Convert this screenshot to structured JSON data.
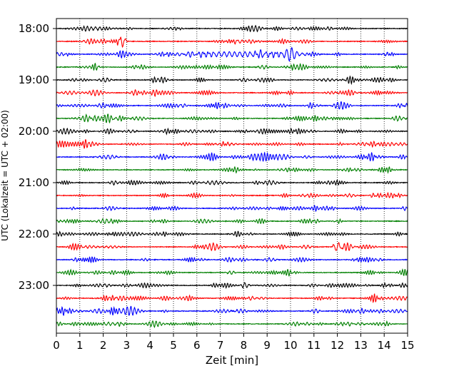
{
  "chart_data": {
    "type": "line",
    "title": "",
    "xlabel": "Zeit  [min]",
    "ylabel": "UTC (Lokalzeit = UTC + 02:00)",
    "xlim": [
      0,
      15
    ],
    "x_ticks": [
      "0",
      "1",
      "2",
      "3",
      "4",
      "5",
      "6",
      "7",
      "8",
      "9",
      "10",
      "11",
      "12",
      "13",
      "14",
      "15"
    ],
    "y_ticks": [
      "18:00",
      "19:00",
      "20:00",
      "21:00",
      "22:00",
      "23:00"
    ],
    "grid": "vertical-dotted",
    "legend": "none",
    "trace_interval_minutes": 15,
    "trace_colors": [
      "#000000",
      "#ff0000",
      "#0000ff",
      "#008000"
    ],
    "traces": [
      {
        "start": "18:00",
        "color": "#000000"
      },
      {
        "start": "18:15",
        "color": "#ff0000"
      },
      {
        "start": "18:30",
        "color": "#0000ff"
      },
      {
        "start": "18:45",
        "color": "#008000"
      },
      {
        "start": "19:00",
        "color": "#000000"
      },
      {
        "start": "19:15",
        "color": "#ff0000"
      },
      {
        "start": "19:30",
        "color": "#0000ff"
      },
      {
        "start": "19:45",
        "color": "#008000"
      },
      {
        "start": "20:00",
        "color": "#000000"
      },
      {
        "start": "20:15",
        "color": "#ff0000"
      },
      {
        "start": "20:30",
        "color": "#0000ff"
      },
      {
        "start": "20:45",
        "color": "#008000"
      },
      {
        "start": "21:00",
        "color": "#000000"
      },
      {
        "start": "21:15",
        "color": "#ff0000"
      },
      {
        "start": "21:30",
        "color": "#0000ff"
      },
      {
        "start": "21:45",
        "color": "#008000"
      },
      {
        "start": "22:00",
        "color": "#000000"
      },
      {
        "start": "22:15",
        "color": "#ff0000"
      },
      {
        "start": "22:30",
        "color": "#0000ff"
      },
      {
        "start": "22:45",
        "color": "#008000"
      },
      {
        "start": "23:00",
        "color": "#000000"
      },
      {
        "start": "23:15",
        "color": "#ff0000"
      },
      {
        "start": "23:30",
        "color": "#0000ff"
      },
      {
        "start": "23:45",
        "color": "#008000"
      }
    ],
    "events": [
      {
        "trace": "18:30",
        "from_min": 4.3,
        "to_min": 11.5,
        "peak_min": 10.0,
        "description_amplitude": "high"
      },
      {
        "trace": "18:15",
        "from_min": 2.6,
        "to_min": 3.0,
        "peak_min": 2.8,
        "description_amplitude": "medium"
      },
      {
        "trace": "22:15",
        "from_min": 11.8,
        "to_min": 12.2,
        "peak_min": 12.0,
        "description_amplitude": "medium"
      }
    ]
  }
}
